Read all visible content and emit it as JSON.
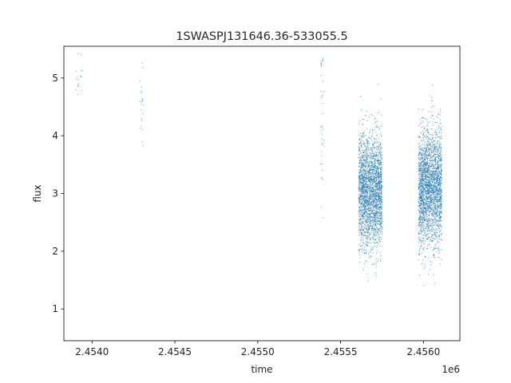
{
  "chart_data": {
    "type": "scatter",
    "title": "1SWASPJ131646.36-533055.5",
    "xlabel": "time",
    "ylabel": "flux",
    "x_offset_label": "1e6",
    "xlim": [
      2.45383,
      2.45622
    ],
    "ylim": [
      0.45,
      5.55
    ],
    "x_ticks": [
      2.454,
      2.4545,
      2.455,
      2.4555,
      2.456
    ],
    "x_tick_labels": [
      "2.4540",
      "2.4545",
      "2.4550",
      "2.4555",
      "2.4560"
    ],
    "y_ticks": [
      1,
      2,
      3,
      4,
      5
    ],
    "y_tick_labels": [
      "1",
      "2",
      "3",
      "4",
      "5"
    ],
    "grid": false,
    "series_color": "#1f77b4",
    "clusters": [
      {
        "x_range": [
          2.4539,
          2.45394
        ],
        "y_center": 5.05,
        "y_sigma": 0.25,
        "y_min": 4.7,
        "y_max": 5.45,
        "count": 18
      },
      {
        "x_range": [
          2.45429,
          2.45431
        ],
        "y_center": 4.6,
        "y_sigma": 0.45,
        "y_min": 3.4,
        "y_max": 5.3,
        "count": 22
      },
      {
        "x_range": [
          2.45538,
          2.4554
        ],
        "y_center": 4.4,
        "y_sigma": 1.0,
        "y_min": 1.9,
        "y_max": 5.4,
        "count": 40
      },
      {
        "x_range": [
          2.45561,
          2.45575
        ],
        "y_center": 3.05,
        "y_sigma": 0.48,
        "y_min": 0.8,
        "y_max": 5.45,
        "count": 2600
      },
      {
        "x_range": [
          2.45597,
          2.45611
        ],
        "y_center": 3.1,
        "y_sigma": 0.5,
        "y_min": 0.7,
        "y_max": 5.45,
        "count": 2600
      }
    ]
  }
}
